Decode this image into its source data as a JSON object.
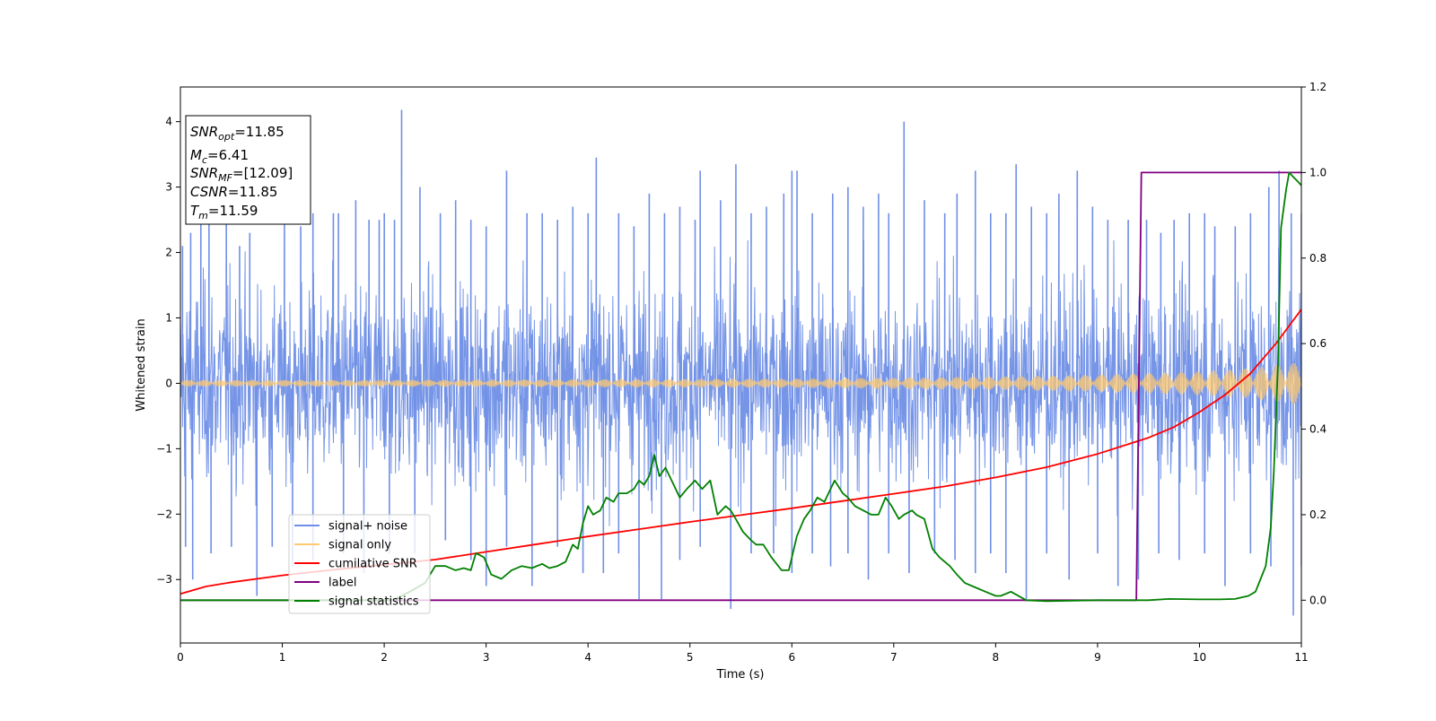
{
  "chart_data": {
    "type": "line",
    "title": "",
    "xlabel": "Time (s)",
    "ylabel": "Whitened strain",
    "xlim": [
      0,
      11
    ],
    "ylim": [
      -3.97,
      4.53
    ],
    "y2lim": [
      -0.1,
      1.2
    ],
    "x_ticks": [
      "0",
      "1",
      "2",
      "3",
      "4",
      "5",
      "6",
      "7",
      "8",
      "9",
      "10",
      "11"
    ],
    "y_ticks": [
      "−3",
      "−2",
      "−1",
      "0",
      "1",
      "2",
      "3",
      "4"
    ],
    "y2_ticks": [
      "0.0",
      "0.2",
      "0.4",
      "0.6",
      "0.8",
      "1.0",
      "1.2"
    ],
    "grid": false,
    "legend_position": "lower-left",
    "annotation_box": {
      "lines": [
        {
          "sym": "SNR",
          "sub": "opt",
          "value": "=11.85"
        },
        {
          "sym": "M",
          "sub": "c",
          "value": "=6.41"
        },
        {
          "sym": "SNR",
          "sub": "MF",
          "value": "=[12.09]"
        },
        {
          "sym": "CSNR",
          "sub": "",
          "value": "=11.85"
        },
        {
          "sym": "T",
          "sub": "m",
          "value": "=11.59"
        }
      ]
    },
    "series": [
      {
        "name": "signal+ noise",
        "axis": "left",
        "color": "#6f8fe6",
        "envelope": {
          "x": [
            0,
            11
          ],
          "typical_max": 1.9,
          "typical_min": -1.9,
          "spikes_up": [
            [
              0.02,
              2.1
            ],
            [
              0.1,
              2.3
            ],
            [
              0.2,
              2.9
            ],
            [
              0.28,
              3.0
            ],
            [
              0.45,
              2.8
            ],
            [
              0.58,
              2.1
            ],
            [
              0.68,
              2.3
            ],
            [
              1.02,
              2.5
            ],
            [
              1.18,
              2.4
            ],
            [
              1.3,
              2.6
            ],
            [
              1.5,
              2.6
            ],
            [
              1.55,
              2.6
            ],
            [
              1.72,
              2.8
            ],
            [
              1.85,
              2.5
            ],
            [
              1.95,
              2.5
            ],
            [
              2.0,
              2.6
            ],
            [
              2.1,
              2.5
            ],
            [
              2.17,
              4.18
            ],
            [
              2.35,
              3.0
            ],
            [
              2.55,
              2.6
            ],
            [
              2.7,
              2.8
            ],
            [
              2.85,
              2.5
            ],
            [
              3.0,
              2.4
            ],
            [
              3.2,
              3.25
            ],
            [
              3.4,
              2.6
            ],
            [
              3.55,
              2.6
            ],
            [
              3.7,
              2.5
            ],
            [
              3.85,
              2.7
            ],
            [
              4.0,
              2.6
            ],
            [
              4.08,
              3.45
            ],
            [
              4.3,
              2.6
            ],
            [
              4.45,
              2.4
            ],
            [
              4.6,
              2.9
            ],
            [
              4.75,
              2.6
            ],
            [
              4.9,
              2.7
            ],
            [
              5.05,
              2.5
            ],
            [
              5.1,
              3.25
            ],
            [
              5.3,
              2.8
            ],
            [
              5.45,
              3.35
            ],
            [
              5.6,
              2.6
            ],
            [
              5.75,
              2.7
            ],
            [
              5.92,
              2.9
            ],
            [
              6.0,
              3.25
            ],
            [
              6.05,
              3.25
            ],
            [
              6.2,
              2.6
            ],
            [
              6.4,
              2.9
            ],
            [
              6.55,
              3.0
            ],
            [
              6.7,
              2.7
            ],
            [
              6.85,
              2.9
            ],
            [
              6.95,
              2.6
            ],
            [
              7.1,
              4.0
            ],
            [
              7.3,
              2.8
            ],
            [
              7.5,
              2.6
            ],
            [
              7.62,
              2.9
            ],
            [
              7.8,
              3.25
            ],
            [
              7.95,
              2.6
            ],
            [
              8.1,
              2.6
            ],
            [
              8.2,
              3.35
            ],
            [
              8.35,
              2.7
            ],
            [
              8.5,
              2.6
            ],
            [
              8.62,
              2.9
            ],
            [
              8.8,
              3.25
            ],
            [
              8.95,
              2.7
            ],
            [
              9.1,
              2.5
            ],
            [
              9.3,
              2.5
            ],
            [
              9.48,
              2.5
            ],
            [
              9.62,
              2.3
            ],
            [
              9.75,
              2.5
            ],
            [
              9.9,
              2.6
            ],
            [
              10.05,
              2.6
            ],
            [
              10.15,
              2.4
            ],
            [
              10.35,
              2.4
            ],
            [
              10.5,
              2.6
            ],
            [
              10.68,
              3.0
            ],
            [
              10.78,
              3.25
            ],
            [
              10.9,
              2.6
            ],
            [
              11.0,
              2.6
            ]
          ],
          "spikes_down": [
            [
              0.05,
              -2.5
            ],
            [
              0.12,
              -3.0
            ],
            [
              0.3,
              -2.6
            ],
            [
              0.5,
              -2.5
            ],
            [
              0.75,
              -3.25
            ],
            [
              0.9,
              -2.5
            ],
            [
              1.1,
              -2.8
            ],
            [
              1.3,
              -2.7
            ],
            [
              1.6,
              -2.6
            ],
            [
              1.8,
              -2.9
            ],
            [
              2.05,
              -2.6
            ],
            [
              2.3,
              -2.6
            ],
            [
              2.6,
              -2.4
            ],
            [
              2.85,
              -2.7
            ],
            [
              3.0,
              -3.1
            ],
            [
              3.2,
              -2.5
            ],
            [
              3.45,
              -3.1
            ],
            [
              3.7,
              -2.5
            ],
            [
              3.95,
              -2.9
            ],
            [
              4.15,
              -2.9
            ],
            [
              4.3,
              -2.6
            ],
            [
              4.5,
              -3.3
            ],
            [
              4.72,
              -3.3
            ],
            [
              4.9,
              -2.7
            ],
            [
              5.1,
              -2.5
            ],
            [
              5.4,
              -3.45
            ],
            [
              5.6,
              -2.6
            ],
            [
              5.82,
              -2.6
            ],
            [
              6.0,
              -2.9
            ],
            [
              6.2,
              -2.6
            ],
            [
              6.38,
              -2.8
            ],
            [
              6.55,
              -2.6
            ],
            [
              6.75,
              -3.0
            ],
            [
              6.95,
              -2.6
            ],
            [
              7.15,
              -2.9
            ],
            [
              7.4,
              -2.6
            ],
            [
              7.6,
              -2.7
            ],
            [
              7.8,
              -2.9
            ],
            [
              7.95,
              -2.6
            ],
            [
              8.1,
              -2.9
            ],
            [
              8.3,
              -3.3
            ],
            [
              8.5,
              -2.6
            ],
            [
              8.72,
              -3.0
            ],
            [
              9.0,
              -2.6
            ],
            [
              9.2,
              -3.1
            ],
            [
              9.4,
              -3.0
            ],
            [
              9.6,
              -2.6
            ],
            [
              9.8,
              -2.7
            ],
            [
              10.05,
              -2.6
            ],
            [
              10.25,
              -3.1
            ],
            [
              10.5,
              -2.6
            ],
            [
              10.7,
              -2.8
            ],
            [
              10.92,
              -3.55
            ],
            [
              11.0,
              -2.8
            ]
          ]
        }
      },
      {
        "name": "signal only",
        "axis": "left",
        "color": "#ffc970",
        "amplitude": {
          "x": [
            0,
            2,
            4,
            6,
            8,
            9,
            10,
            10.5,
            11
          ],
          "y": [
            0.05,
            0.05,
            0.06,
            0.07,
            0.1,
            0.13,
            0.18,
            0.23,
            0.33
          ]
        }
      },
      {
        "name": "cumilative SNR",
        "axis": "right",
        "color": "#ff0000",
        "x": [
          0,
          0.25,
          0.5,
          1,
          1.5,
          2,
          2.5,
          3,
          3.5,
          4,
          4.5,
          5,
          5.5,
          6,
          6.5,
          7,
          7.5,
          8,
          8.5,
          9,
          9.5,
          9.75,
          10,
          10.25,
          10.5,
          10.75,
          11
        ],
        "y": [
          0.015,
          0.032,
          0.042,
          0.058,
          0.071,
          0.083,
          0.095,
          0.113,
          0.131,
          0.149,
          0.166,
          0.183,
          0.199,
          0.215,
          0.232,
          0.249,
          0.266,
          0.287,
          0.311,
          0.342,
          0.38,
          0.405,
          0.44,
          0.48,
          0.53,
          0.6,
          0.68
        ]
      },
      {
        "name": "label",
        "axis": "right",
        "color": "#800080",
        "x": [
          0,
          9.38,
          9.43,
          11
        ],
        "y": [
          0,
          0,
          1,
          1
        ]
      },
      {
        "name": "signal statistics",
        "axis": "right",
        "color": "#008000",
        "x": [
          0,
          0.5,
          1,
          1.5,
          2,
          2.1,
          2.25,
          2.4,
          2.5,
          2.6,
          2.7,
          2.78,
          2.85,
          2.9,
          2.98,
          3.05,
          3.15,
          3.25,
          3.35,
          3.45,
          3.55,
          3.62,
          3.7,
          3.78,
          3.85,
          3.9,
          3.95,
          4.0,
          4.05,
          4.12,
          4.18,
          4.25,
          4.3,
          4.38,
          4.45,
          4.5,
          4.55,
          4.6,
          4.65,
          4.7,
          4.76,
          4.82,
          4.9,
          4.97,
          5.05,
          5.12,
          5.2,
          5.27,
          5.35,
          5.4,
          5.45,
          5.52,
          5.6,
          5.65,
          5.72,
          5.8,
          5.9,
          5.97,
          6.05,
          6.12,
          6.18,
          6.25,
          6.32,
          6.38,
          6.42,
          6.5,
          6.55,
          6.62,
          6.7,
          6.78,
          6.85,
          6.92,
          6.98,
          7.05,
          7.1,
          7.18,
          7.22,
          7.3,
          7.38,
          7.45,
          7.55,
          7.62,
          7.7,
          7.8,
          7.9,
          8.0,
          8.05,
          8.15,
          8.3,
          8.5,
          9.0,
          9.3,
          9.5,
          9.7,
          10.0,
          10.2,
          10.35,
          10.42,
          10.48,
          10.55,
          10.6,
          10.65,
          10.7,
          10.73,
          10.77,
          10.8,
          10.85,
          10.88,
          10.92,
          10.96,
          11.0
        ],
        "y": [
          0.0,
          0.0,
          0.0,
          0.0,
          0.0,
          0.002,
          0.02,
          0.04,
          0.08,
          0.08,
          0.07,
          0.075,
          0.07,
          0.11,
          0.1,
          0.06,
          0.05,
          0.07,
          0.08,
          0.075,
          0.085,
          0.075,
          0.08,
          0.09,
          0.13,
          0.12,
          0.18,
          0.22,
          0.2,
          0.21,
          0.24,
          0.23,
          0.25,
          0.25,
          0.26,
          0.28,
          0.27,
          0.29,
          0.34,
          0.29,
          0.31,
          0.28,
          0.24,
          0.26,
          0.28,
          0.26,
          0.28,
          0.2,
          0.22,
          0.21,
          0.19,
          0.16,
          0.14,
          0.13,
          0.13,
          0.1,
          0.07,
          0.07,
          0.15,
          0.19,
          0.21,
          0.24,
          0.23,
          0.26,
          0.28,
          0.25,
          0.24,
          0.22,
          0.21,
          0.2,
          0.2,
          0.24,
          0.22,
          0.19,
          0.2,
          0.21,
          0.2,
          0.19,
          0.12,
          0.1,
          0.08,
          0.06,
          0.04,
          0.03,
          0.02,
          0.01,
          0.01,
          0.02,
          0.0,
          -0.002,
          0.0,
          0.0,
          0.0,
          0.003,
          0.002,
          0.002,
          0.003,
          0.007,
          0.01,
          0.02,
          0.05,
          0.08,
          0.17,
          0.3,
          0.55,
          0.87,
          0.96,
          1.0,
          0.99,
          0.98,
          0.97
        ]
      }
    ]
  }
}
